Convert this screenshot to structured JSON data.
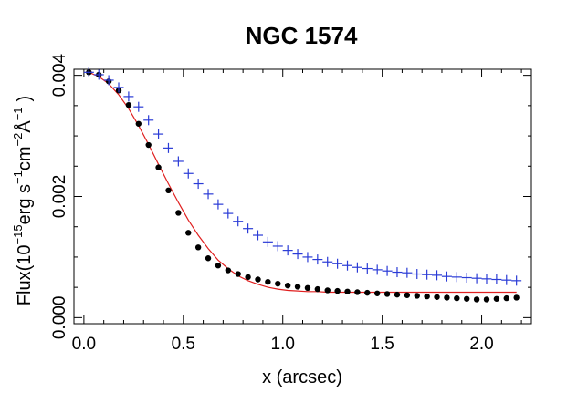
{
  "chart_data": {
    "type": "scatter",
    "title": "NGC 1574",
    "xlabel": "x (arcsec)",
    "ylabel": "Flux(10^-15 erg s^-1 cm^-2 Å^-1 )",
    "ylabel_parts": {
      "base": "Flux(10",
      "exp1": "−15",
      "unit1": "erg s",
      "exp2": "−1",
      "unit2": "cm",
      "exp3": "−2",
      "unit3": "Å",
      "exp4": "−1",
      "close": ")"
    },
    "xlim": [
      -0.05,
      2.25
    ],
    "ylim": [
      -0.0001,
      0.0041
    ],
    "x_ticks": [
      {
        "value": 0.0,
        "label": "0.0"
      },
      {
        "value": 0.5,
        "label": "0.5"
      },
      {
        "value": 1.0,
        "label": "1.0"
      },
      {
        "value": 1.5,
        "label": "1.5"
      },
      {
        "value": 2.0,
        "label": "2.0"
      }
    ],
    "y_ticks": [
      {
        "value": 0.0,
        "label": "0.000"
      },
      {
        "value": 0.002,
        "label": "0.002"
      },
      {
        "value": 0.004,
        "label": "0.004"
      }
    ],
    "colors": {
      "crosses": "#2a3bd6",
      "dots": "#000000",
      "line": "#e02020",
      "axes": "#000000"
    },
    "series": [
      {
        "name": "blue-crosses",
        "marker": "plus",
        "x": [
          0.025,
          0.075,
          0.125,
          0.175,
          0.225,
          0.275,
          0.325,
          0.375,
          0.425,
          0.475,
          0.525,
          0.575,
          0.625,
          0.675,
          0.725,
          0.775,
          0.825,
          0.875,
          0.925,
          0.975,
          1.025,
          1.075,
          1.125,
          1.175,
          1.225,
          1.275,
          1.325,
          1.375,
          1.425,
          1.475,
          1.525,
          1.575,
          1.625,
          1.675,
          1.725,
          1.775,
          1.825,
          1.875,
          1.925,
          1.975,
          2.025,
          2.075,
          2.125,
          2.175
        ],
        "y": [
          0.00405,
          0.00401,
          0.00392,
          0.0038,
          0.00365,
          0.00348,
          0.00326,
          0.00303,
          0.0028,
          0.00258,
          0.00238,
          0.00221,
          0.00204,
          0.00187,
          0.00172,
          0.00159,
          0.00147,
          0.00136,
          0.00125,
          0.00118,
          0.00111,
          0.00105,
          0.001,
          0.00096,
          0.00092,
          0.00089,
          0.00086,
          0.00083,
          0.00081,
          0.00079,
          0.00077,
          0.00075,
          0.00074,
          0.00072,
          0.00071,
          0.0007,
          0.00068,
          0.00067,
          0.00066,
          0.00065,
          0.00064,
          0.00063,
          0.00062,
          0.00061
        ]
      },
      {
        "name": "black-dots",
        "marker": "circle",
        "x": [
          0.025,
          0.075,
          0.125,
          0.175,
          0.225,
          0.275,
          0.325,
          0.375,
          0.425,
          0.475,
          0.525,
          0.575,
          0.625,
          0.675,
          0.725,
          0.775,
          0.825,
          0.875,
          0.925,
          0.975,
          1.025,
          1.075,
          1.125,
          1.175,
          1.225,
          1.275,
          1.325,
          1.375,
          1.425,
          1.475,
          1.525,
          1.575,
          1.625,
          1.675,
          1.725,
          1.775,
          1.825,
          1.875,
          1.925,
          1.975,
          2.025,
          2.075,
          2.125,
          2.175
        ],
        "y": [
          0.00405,
          0.00401,
          0.0039,
          0.00375,
          0.00351,
          0.0032,
          0.00285,
          0.00248,
          0.0021,
          0.00173,
          0.0014,
          0.00116,
          0.00098,
          0.00086,
          0.00078,
          0.00072,
          0.00067,
          0.00063,
          0.00059,
          0.00056,
          0.00053,
          0.00051,
          0.00049,
          0.00047,
          0.00045,
          0.00044,
          0.00043,
          0.00042,
          0.00041,
          0.0004,
          0.00039,
          0.00038,
          0.00037,
          0.00036,
          0.00035,
          0.00034,
          0.00033,
          0.00032,
          0.00031,
          0.0003,
          0.0003,
          0.00031,
          0.00032,
          0.00033
        ]
      },
      {
        "name": "red-fit",
        "marker": "line",
        "x": [
          0.025,
          0.075,
          0.125,
          0.175,
          0.225,
          0.275,
          0.325,
          0.375,
          0.425,
          0.475,
          0.525,
          0.575,
          0.625,
          0.675,
          0.725,
          0.775,
          0.825,
          0.875,
          0.925,
          0.975,
          1.025,
          1.075,
          1.125,
          1.175,
          1.225,
          1.275,
          1.325,
          1.375,
          1.425,
          1.475,
          1.525,
          1.575,
          1.625,
          1.675,
          1.725,
          1.775,
          1.825,
          1.875,
          1.925,
          1.975,
          2.025,
          2.075,
          2.125,
          2.175
        ],
        "y": [
          0.00405,
          0.00398,
          0.00386,
          0.00368,
          0.00345,
          0.00317,
          0.00286,
          0.00253,
          0.00221,
          0.0019,
          0.00161,
          0.00136,
          0.00114,
          0.00095,
          0.00081,
          0.00069,
          0.00061,
          0.00055,
          0.0005,
          0.00047,
          0.00045,
          0.00044,
          0.00043,
          0.00043,
          0.00042,
          0.00042,
          0.00042,
          0.00042,
          0.00042,
          0.00042,
          0.00042,
          0.00042,
          0.00042,
          0.00042,
          0.00042,
          0.00042,
          0.00042,
          0.00042,
          0.00042,
          0.00042,
          0.00042,
          0.00042,
          0.00042,
          0.00042
        ]
      }
    ]
  }
}
